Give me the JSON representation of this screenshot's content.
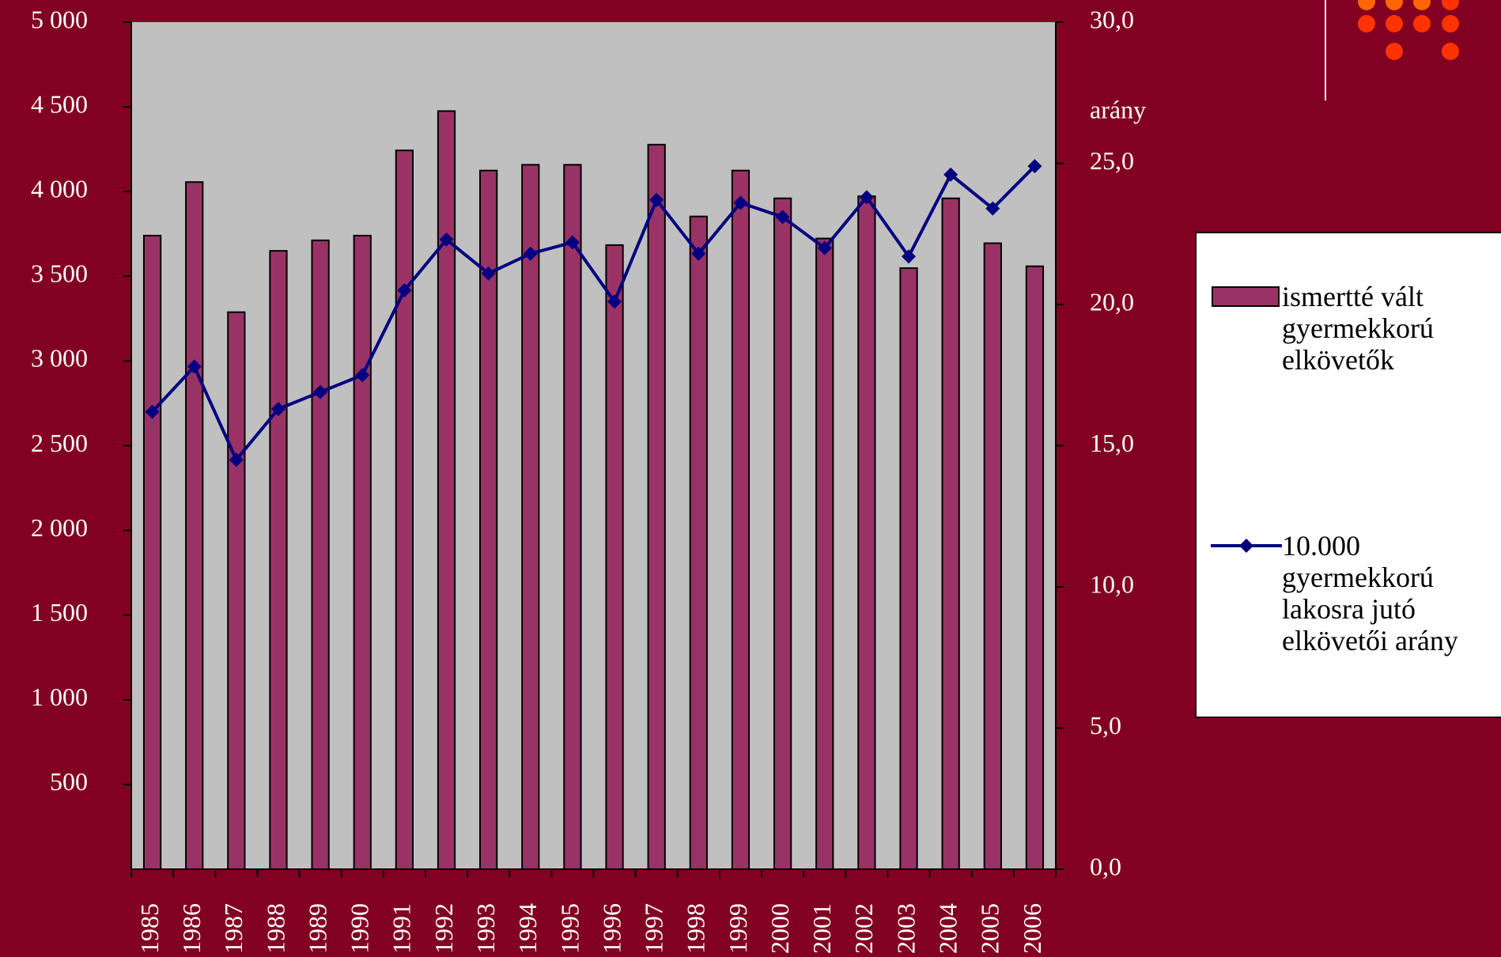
{
  "chart_data": {
    "type": "bar-line",
    "categories": [
      "1985",
      "1986",
      "1987",
      "1988",
      "1989",
      "1990",
      "1991",
      "1992",
      "1993",
      "1994",
      "1995",
      "1996",
      "1997",
      "1998",
      "1999",
      "2000",
      "2001",
      "2002",
      "2003",
      "2004",
      "2005",
      "2006"
    ],
    "series": [
      {
        "name": "ismertté vált gyermekkorú elkövetők",
        "type": "bar",
        "color": "#993366",
        "values": [
          3740,
          4056,
          3288,
          3650,
          3712,
          3740,
          4243,
          4475,
          4124,
          4158,
          4158,
          3684,
          4277,
          3853,
          4124,
          3960,
          3723,
          3972,
          3548,
          3960,
          3695,
          3559
        ]
      },
      {
        "name": "10.000 gyermekkorú lakosra jutó elkövetői arány",
        "type": "line",
        "axis": "y2",
        "color": "#000080",
        "values": [
          16.2,
          17.8,
          14.5,
          16.3,
          16.9,
          17.5,
          20.5,
          22.3,
          21.1,
          21.8,
          22.2,
          20.1,
          23.7,
          21.8,
          23.6,
          23.1,
          22.0,
          23.8,
          21.7,
          24.6,
          23.4,
          24.9
        ]
      }
    ],
    "ylim": [
      0,
      5000
    ],
    "yticks": [
      {
        "value": 500,
        "label": "500"
      },
      {
        "value": 1000,
        "label": "1 000"
      },
      {
        "value": 1500,
        "label": "1 500"
      },
      {
        "value": 2000,
        "label": "2 000"
      },
      {
        "value": 2500,
        "label": "2 500"
      },
      {
        "value": 3000,
        "label": "3 000"
      },
      {
        "value": 3500,
        "label": "3 500"
      },
      {
        "value": 4000,
        "label": "4 000"
      },
      {
        "value": 4500,
        "label": "4 500"
      },
      {
        "value": 5000,
        "label": "5 000"
      }
    ],
    "y2lim": [
      0,
      30
    ],
    "y2ticks": [
      {
        "value": 0,
        "label": "0,0"
      },
      {
        "value": 5,
        "label": "5,0"
      },
      {
        "value": 10,
        "label": "10,0"
      },
      {
        "value": 15,
        "label": "15,0"
      },
      {
        "value": 20,
        "label": "20,0"
      },
      {
        "value": 25,
        "label": "25,0"
      },
      {
        "value": 30,
        "label": "30,0"
      }
    ],
    "y2label": "arány",
    "legend": "right"
  }
}
